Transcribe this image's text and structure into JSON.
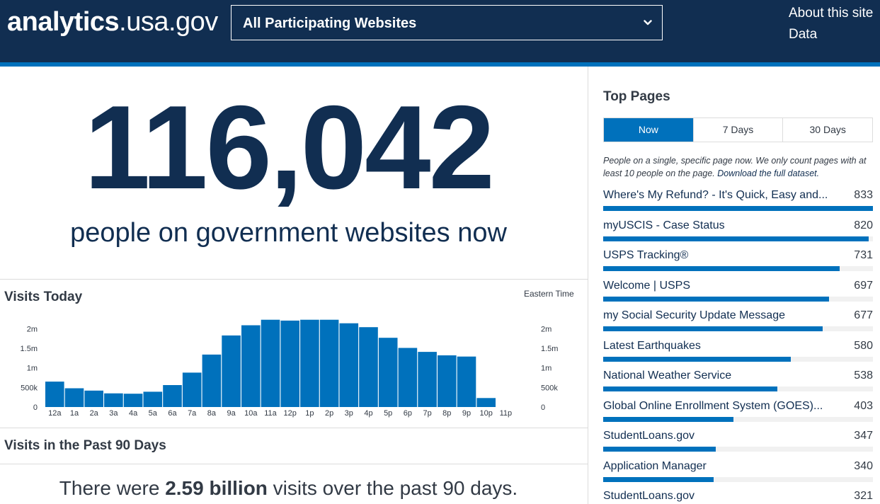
{
  "header": {
    "logo_bold": "analytics",
    "logo_light": ".usa.gov",
    "site_select": "All Participating Websites",
    "nav": [
      "About this site",
      "Data"
    ]
  },
  "realtime": {
    "count": "116,042",
    "caption": "people on government websites now"
  },
  "visits_today": {
    "title": "Visits Today",
    "timezone": "Eastern Time"
  },
  "chart_data": {
    "type": "bar",
    "title": "Visits Today",
    "categories": [
      "12a",
      "1a",
      "2a",
      "3a",
      "4a",
      "5a",
      "6a",
      "7a",
      "8a",
      "9a",
      "10a",
      "11a",
      "12p",
      "1p",
      "2p",
      "3p",
      "4p",
      "5p",
      "6p",
      "7p",
      "8p",
      "9p",
      "10p",
      "11p"
    ],
    "values": [
      650000,
      480000,
      420000,
      350000,
      340000,
      390000,
      560000,
      880000,
      1340000,
      1830000,
      2090000,
      2230000,
      2210000,
      2230000,
      2230000,
      2140000,
      2040000,
      1770000,
      1510000,
      1410000,
      1320000,
      1290000,
      230000,
      null
    ],
    "yticks": [
      0,
      500000,
      1000000,
      1500000,
      2000000
    ],
    "ytick_labels": [
      "0",
      "500k",
      "1m",
      "1.5m",
      "2m"
    ],
    "ylim": [
      0,
      2350000
    ],
    "xlabel": "",
    "ylabel": "",
    "grid": false,
    "color": "#0071bc"
  },
  "past90": {
    "title": "Visits in the Past 90 Days",
    "prefix": "There were ",
    "value": "2.59 billion",
    "suffix": " visits over the past 90 days."
  },
  "top_pages": {
    "title": "Top Pages",
    "tabs": [
      "Now",
      "7 Days",
      "30 Days"
    ],
    "active_tab": 0,
    "desc": "People on a single, specific page now. We only count pages with at least 10 people on the page. ",
    "desc_link": "Download the full dataset.",
    "max_count": 833,
    "items": [
      {
        "name": "Where's My Refund? - It's Quick, Easy and...",
        "count": 833
      },
      {
        "name": "myUSCIS - Case Status",
        "count": 820
      },
      {
        "name": "USPS Tracking®",
        "count": 731
      },
      {
        "name": "Welcome | USPS",
        "count": 697
      },
      {
        "name": "my Social Security Update Message",
        "count": 677
      },
      {
        "name": "Latest Earthquakes",
        "count": 580
      },
      {
        "name": "National Weather Service",
        "count": 538
      },
      {
        "name": "Global Online Enrollment System (GOES)...",
        "count": 403
      },
      {
        "name": "StudentLoans.gov",
        "count": 347
      },
      {
        "name": "Application Manager",
        "count": 340
      },
      {
        "name": "StudentLoans.gov",
        "count": 321
      }
    ]
  },
  "colors": {
    "navy": "#112e51",
    "accent": "#0071bc",
    "track": "#f1f1f1"
  }
}
